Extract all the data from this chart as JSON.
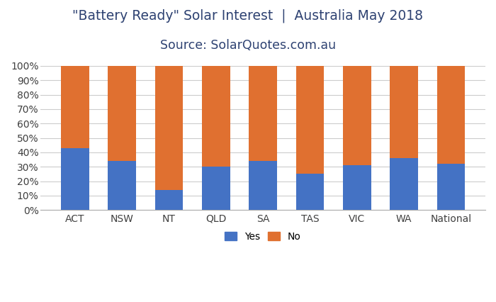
{
  "categories": [
    "ACT",
    "NSW",
    "NT",
    "QLD",
    "SA",
    "TAS",
    "VIC",
    "WA",
    "National"
  ],
  "yes_values": [
    43,
    34,
    14,
    30,
    34,
    25,
    31,
    36,
    32
  ],
  "no_values": [
    57,
    66,
    86,
    70,
    66,
    75,
    69,
    64,
    68
  ],
  "yes_color": "#4472C4",
  "no_color": "#E07030",
  "title_line1": "\"Battery Ready\" Solar Interest  |  Australia May 2018",
  "title_line2": "Source: SolarQuotes.com.au",
  "ylim": [
    0,
    100
  ],
  "yticks": [
    0,
    10,
    20,
    30,
    40,
    50,
    60,
    70,
    80,
    90,
    100
  ],
  "ytick_labels": [
    "0%",
    "10%",
    "20%",
    "30%",
    "40%",
    "50%",
    "60%",
    "70%",
    "80%",
    "90%",
    "100%"
  ],
  "legend_yes": "Yes",
  "legend_no": "No",
  "background_color": "#ffffff",
  "grid_color": "#cccccc",
  "title_color": "#2E4272",
  "title_fontsize": 13.5,
  "subtitle_fontsize": 12.5,
  "tick_fontsize": 10,
  "legend_fontsize": 10,
  "bar_width": 0.6,
  "spine_color": "#aaaaaa"
}
